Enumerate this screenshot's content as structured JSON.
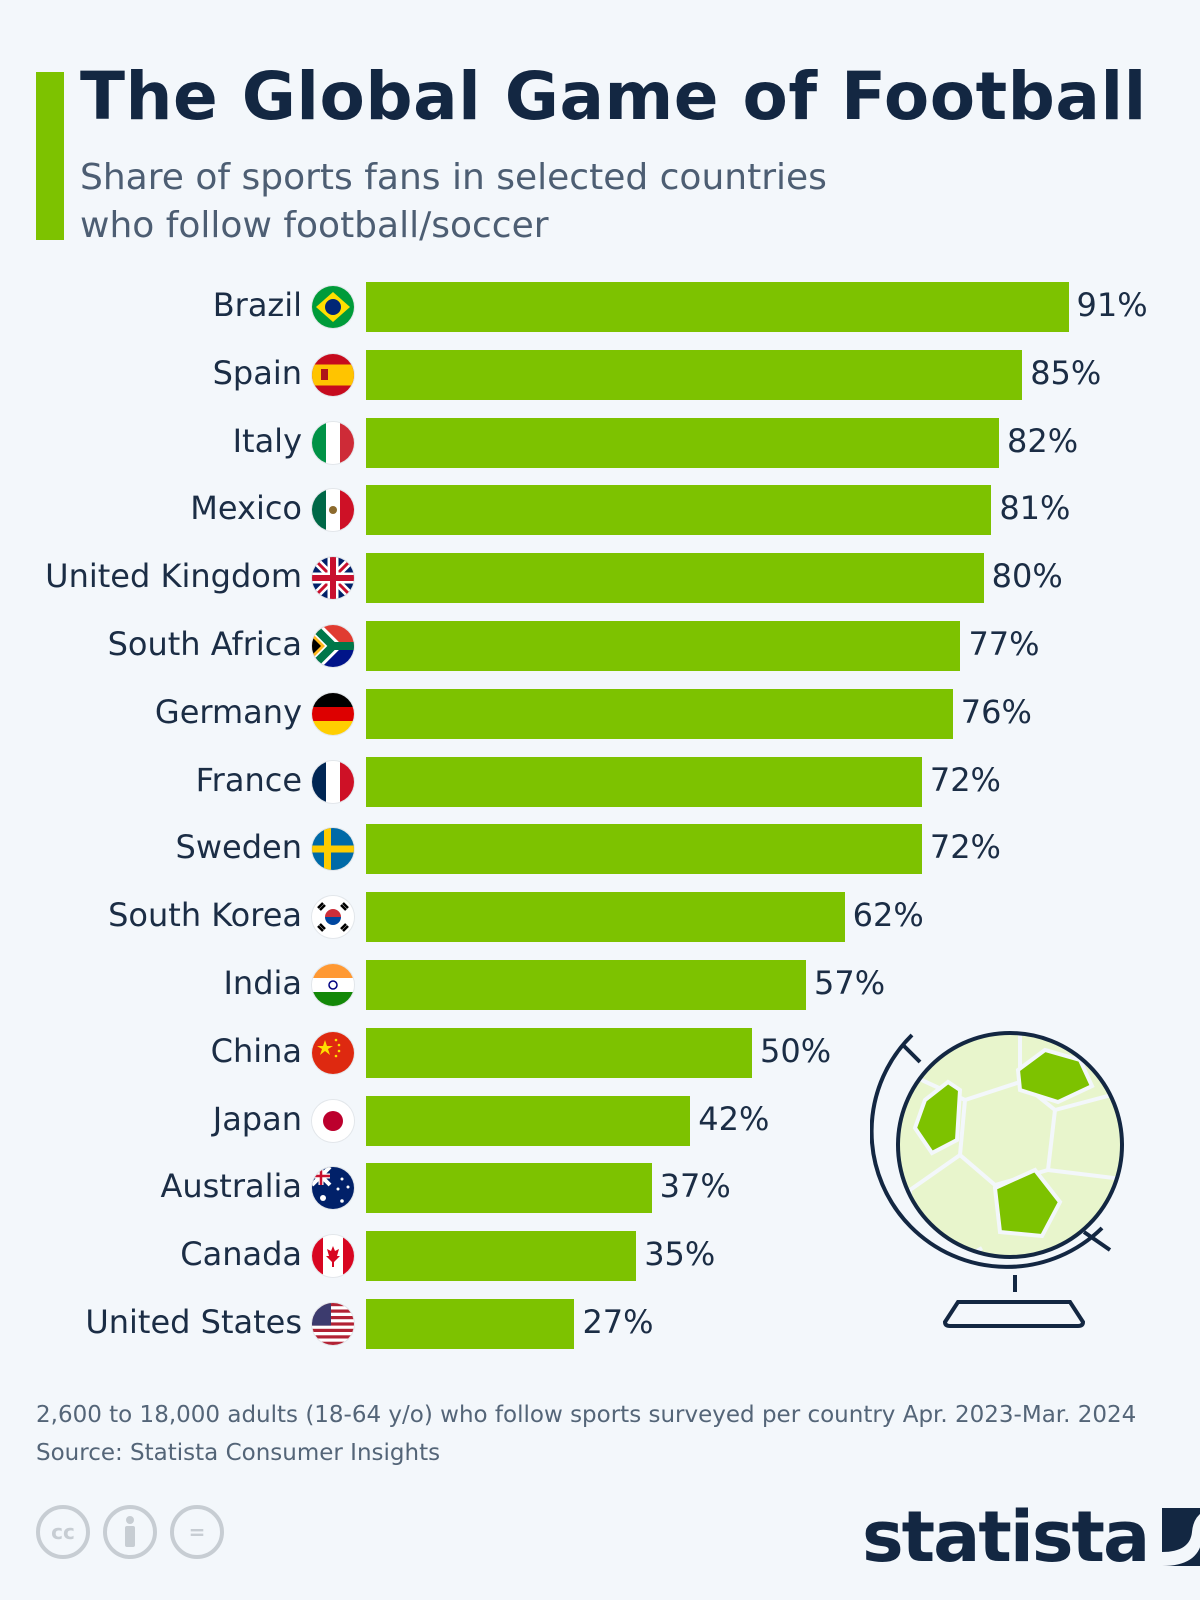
{
  "header": {
    "title": "The Global Game of Football",
    "subtitle_line1": "Share of sports fans in selected countries",
    "subtitle_line2": "who follow football/soccer"
  },
  "colors": {
    "accent": "#7dc200",
    "title": "#132742",
    "subtitle": "#4d5e73",
    "background": "#f3f7fb",
    "globe_fill": "#e8f5cc",
    "globe_outline": "#132742"
  },
  "chart_data": {
    "type": "bar",
    "orientation": "horizontal",
    "title": "The Global Game of Football",
    "subtitle": "Share of sports fans in selected countries who follow football/soccer",
    "xlabel": "",
    "ylabel": "",
    "unit": "%",
    "xlim": [
      0,
      100
    ],
    "grid": false,
    "legend": "none",
    "categories": [
      "Brazil",
      "Spain",
      "Italy",
      "Mexico",
      "United Kingdom",
      "South Africa",
      "Germany",
      "France",
      "Sweden",
      "South Korea",
      "India",
      "China",
      "Japan",
      "Australia",
      "Canada",
      "United States"
    ],
    "values": [
      91,
      85,
      82,
      81,
      80,
      77,
      76,
      72,
      72,
      62,
      57,
      50,
      42,
      37,
      35,
      27
    ]
  },
  "rows": [
    {
      "country": "Brazil",
      "value": 91,
      "label": "91%",
      "flag": "brazil-flag"
    },
    {
      "country": "Spain",
      "value": 85,
      "label": "85%",
      "flag": "spain-flag"
    },
    {
      "country": "Italy",
      "value": 82,
      "label": "82%",
      "flag": "italy-flag"
    },
    {
      "country": "Mexico",
      "value": 81,
      "label": "81%",
      "flag": "mexico-flag"
    },
    {
      "country": "United Kingdom",
      "value": 80,
      "label": "80%",
      "flag": "uk-flag"
    },
    {
      "country": "South Africa",
      "value": 77,
      "label": "77%",
      "flag": "south-africa-flag"
    },
    {
      "country": "Germany",
      "value": 76,
      "label": "76%",
      "flag": "germany-flag"
    },
    {
      "country": "France",
      "value": 72,
      "label": "72%",
      "flag": "france-flag"
    },
    {
      "country": "Sweden",
      "value": 72,
      "label": "72%",
      "flag": "sweden-flag"
    },
    {
      "country": "South Korea",
      "value": 62,
      "label": "62%",
      "flag": "south-korea-flag"
    },
    {
      "country": "India",
      "value": 57,
      "label": "57%",
      "flag": "india-flag"
    },
    {
      "country": "China",
      "value": 50,
      "label": "50%",
      "flag": "china-flag"
    },
    {
      "country": "Japan",
      "value": 42,
      "label": "42%",
      "flag": "japan-flag"
    },
    {
      "country": "Australia",
      "value": 37,
      "label": "37%",
      "flag": "australia-flag"
    },
    {
      "country": "Canada",
      "value": 35,
      "label": "35%",
      "flag": "canada-flag"
    },
    {
      "country": "United States",
      "value": 27,
      "label": "27%",
      "flag": "usa-flag"
    }
  ],
  "illustration": {
    "icon": "soccer-ball-globe-icon"
  },
  "footer": {
    "note": "2,600 to 18,000 adults (18-64 y/o) who follow sports surveyed per country Apr. 2023-Mar. 2024",
    "source": "Source: Statista Consumer Insights",
    "license_icons": [
      "cc-icon",
      "attribution-icon",
      "no-derivatives-icon"
    ],
    "cc_label": "cc",
    "nd_label": "=",
    "logo_text": "statista"
  }
}
